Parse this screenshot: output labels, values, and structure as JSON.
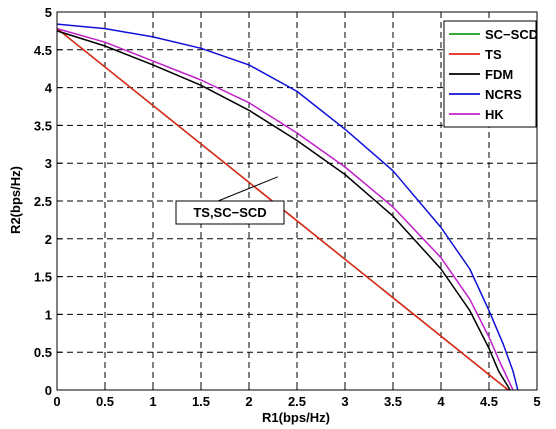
{
  "chart_data": {
    "type": "line",
    "title": "",
    "xlabel": "R1(bps/Hz)",
    "ylabel": "R2(bps/Hz)",
    "xlim": [
      0,
      5
    ],
    "ylim": [
      0,
      5
    ],
    "xticks": [
      "0",
      "0.5",
      "1",
      "1.5",
      "2",
      "2.5",
      "3",
      "3.5",
      "4",
      "4.5",
      "5"
    ],
    "yticks": [
      "0",
      "0.5",
      "1",
      "1.5",
      "2",
      "2.5",
      "3",
      "3.5",
      "4",
      "4.5",
      "5"
    ],
    "grid": true,
    "legend_position": "top-right",
    "series": [
      {
        "name": "SC−SCD",
        "color": "#1a9a1a",
        "x": [
          0,
          4.7
        ],
        "y": [
          4.78,
          0
        ]
      },
      {
        "name": "TS",
        "color": "#e8231a",
        "x": [
          0,
          4.7
        ],
        "y": [
          4.78,
          0
        ]
      },
      {
        "name": "FDM",
        "color": "#000000",
        "x": [
          0,
          0.5,
          1,
          1.5,
          2,
          2.5,
          3,
          3.5,
          4,
          4.3,
          4.5,
          4.6,
          4.72
        ],
        "y": [
          4.75,
          4.55,
          4.3,
          4.03,
          3.7,
          3.3,
          2.85,
          2.3,
          1.6,
          1.05,
          0.55,
          0.25,
          0
        ]
      },
      {
        "name": "NCRS",
        "color": "#1010d8",
        "x": [
          0,
          0.5,
          1,
          1.5,
          2,
          2.5,
          3,
          3.5,
          4,
          4.3,
          4.5,
          4.65,
          4.75,
          4.8
        ],
        "y": [
          4.84,
          4.78,
          4.67,
          4.52,
          4.3,
          3.95,
          3.45,
          2.9,
          2.15,
          1.6,
          1.05,
          0.6,
          0.25,
          0
        ]
      },
      {
        "name": "HK",
        "color": "#c020c8",
        "x": [
          0,
          0.5,
          1,
          1.5,
          2,
          2.5,
          3,
          3.5,
          4,
          4.3,
          4.5,
          4.62,
          4.75
        ],
        "y": [
          4.78,
          4.6,
          4.35,
          4.1,
          3.8,
          3.4,
          2.95,
          2.42,
          1.75,
          1.2,
          0.7,
          0.35,
          0
        ]
      }
    ],
    "annotations": [
      {
        "text": "TS,SC−SCD",
        "x": 2.3,
        "y": 2.82
      }
    ]
  }
}
